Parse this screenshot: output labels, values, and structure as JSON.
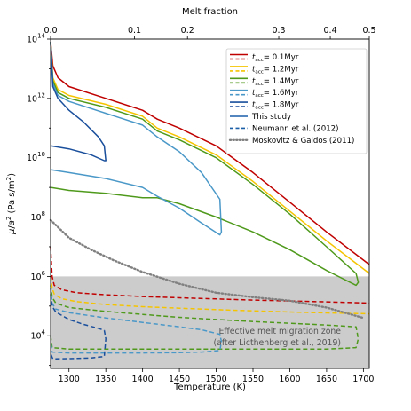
{
  "chart_data": {
    "type": "line",
    "xlabel": "Temperature (K)",
    "ylabel": "μ/a² (Pa s/m²)",
    "top_xlabel": "Melt fraction",
    "xlim": [
      1275,
      1708
    ],
    "ylim_log10": [
      2.9,
      14
    ],
    "y_scale": "log",
    "x_ticks": [
      1300,
      1350,
      1400,
      1450,
      1500,
      1550,
      1600,
      1650,
      1700
    ],
    "y_tick_exponents": [
      4,
      6,
      8,
      10,
      12,
      14
    ],
    "top_ticks": [
      {
        "label": "0.0",
        "T": 1275
      },
      {
        "label": "0.1",
        "T": 1389
      },
      {
        "label": "0.2",
        "T": 1461
      },
      {
        "label": "0.3",
        "T": 1585
      },
      {
        "label": "0.4",
        "T": 1655
      },
      {
        "label": "0.5",
        "T": 1708
      }
    ],
    "shaded_zone": {
      "label_lines": [
        "Effective melt migration zone",
        "(after Licthenberg et al., 2019)"
      ],
      "y_log10_range": [
        2.9,
        6
      ],
      "color": "#cccccc"
    },
    "legend": [
      {
        "text": "t",
        "sub": "acc",
        "value": "= 0.1Myr",
        "color": "#c00000",
        "style": "solid+dashed"
      },
      {
        "text": "t",
        "sub": "acc",
        "value": "= 1.2Myr",
        "color": "#f5c400",
        "style": "solid+dashed"
      },
      {
        "text": "t",
        "sub": "acc",
        "value": "= 1.4Myr",
        "color": "#4f9a1c",
        "style": "solid+dashed"
      },
      {
        "text": "t",
        "sub": "acc",
        "value": "= 1.6Myr",
        "color": "#4a98c8",
        "style": "solid+dashed"
      },
      {
        "text": "t",
        "sub": "acc",
        "value": "= 1.8Myr",
        "color": "#1a4f9c",
        "style": "solid+dashed"
      },
      {
        "text": "This study",
        "color": "#1a5ea8",
        "style": "solid"
      },
      {
        "text": "Neumann et al. (2012)",
        "color": "#1a5ea8",
        "style": "dashed"
      },
      {
        "text": "Moskovitz & Gaidos (2011)",
        "color": "#808080",
        "style": "dotted"
      }
    ],
    "series": [
      {
        "color": "#c00000",
        "style": "solid",
        "x": [
          1275,
          1278,
          1285,
          1300,
          1350,
          1400,
          1420,
          1450,
          1500,
          1550,
          1600,
          1650,
          1708
        ],
        "y_log10": [
          13.9,
          13.1,
          12.7,
          12.4,
          12.0,
          11.6,
          11.3,
          11.0,
          10.4,
          9.5,
          8.5,
          7.5,
          6.4
        ]
      },
      {
        "color": "#c00000",
        "style": "dashed",
        "x": [
          1275,
          1277,
          1280,
          1290,
          1310,
          1350,
          1400,
          1450,
          1500,
          1550,
          1600,
          1650,
          1708
        ],
        "y_log10": [
          7.0,
          6.0,
          5.7,
          5.55,
          5.45,
          5.38,
          5.32,
          5.28,
          5.24,
          5.2,
          5.17,
          5.14,
          5.1
        ]
      },
      {
        "color": "#f5c400",
        "style": "solid",
        "x": [
          1275,
          1278,
          1285,
          1300,
          1350,
          1400,
          1420,
          1450,
          1500,
          1550,
          1600,
          1650,
          1708
        ],
        "y_log10": [
          13.9,
          12.7,
          12.3,
          12.1,
          11.8,
          11.4,
          11.0,
          10.7,
          10.1,
          9.2,
          8.2,
          7.2,
          6.1
        ]
      },
      {
        "color": "#f5c400",
        "style": "dashed",
        "x": [
          1275,
          1277,
          1280,
          1290,
          1310,
          1350,
          1400,
          1450,
          1500,
          1550,
          1600,
          1650,
          1708
        ],
        "y_log10": [
          6.0,
          5.6,
          5.4,
          5.25,
          5.15,
          5.05,
          4.98,
          4.93,
          4.88,
          4.84,
          4.8,
          4.77,
          4.74
        ]
      },
      {
        "color": "#4f9a1c",
        "style": "solid",
        "x": [
          1275,
          1278,
          1285,
          1300,
          1350,
          1400,
          1420,
          1450,
          1500,
          1550,
          1600,
          1650,
          1690,
          1693,
          1690,
          1650,
          1600,
          1550,
          1500,
          1450,
          1420,
          1400,
          1350,
          1300,
          1275
        ],
        "y_log10": [
          13.9,
          12.6,
          12.2,
          12.0,
          11.7,
          11.3,
          10.9,
          10.6,
          10.0,
          9.1,
          8.1,
          7.0,
          6.1,
          5.8,
          5.7,
          6.2,
          6.9,
          7.5,
          8.0,
          8.45,
          8.65,
          8.65,
          8.8,
          8.9,
          9.0
        ]
      },
      {
        "color": "#4f9a1c",
        "style": "dashed",
        "x": [
          1275,
          1277,
          1282,
          1300,
          1350,
          1400,
          1450,
          1500,
          1550,
          1600,
          1650,
          1690,
          1693,
          1690,
          1650,
          1600,
          1550,
          1500,
          1400,
          1300,
          1277,
          1275
        ],
        "y_log10": [
          5.7,
          5.3,
          5.1,
          4.95,
          4.82,
          4.72,
          4.62,
          4.55,
          4.48,
          4.42,
          4.36,
          4.3,
          3.9,
          3.6,
          3.55,
          3.55,
          3.55,
          3.55,
          3.55,
          3.55,
          3.6,
          4.0
        ]
      },
      {
        "color": "#4a98c8",
        "style": "solid",
        "x": [
          1275,
          1278,
          1285,
          1300,
          1350,
          1400,
          1420,
          1450,
          1480,
          1505,
          1507,
          1505,
          1480,
          1450,
          1420,
          1400,
          1350,
          1300,
          1275
        ],
        "y_log10": [
          13.9,
          12.5,
          12.1,
          11.9,
          11.5,
          11.1,
          10.7,
          10.2,
          9.5,
          8.6,
          7.5,
          7.4,
          7.8,
          8.3,
          8.7,
          9.0,
          9.3,
          9.5,
          9.6
        ]
      },
      {
        "color": "#4a98c8",
        "style": "dashed",
        "x": [
          1275,
          1277,
          1282,
          1300,
          1350,
          1400,
          1450,
          1480,
          1505,
          1507,
          1505,
          1480,
          1450,
          1400,
          1350,
          1300,
          1277,
          1275
        ],
        "y_log10": [
          5.6,
          5.1,
          4.9,
          4.78,
          4.6,
          4.45,
          4.3,
          4.2,
          4.05,
          3.8,
          3.5,
          3.45,
          3.43,
          3.42,
          3.42,
          3.42,
          3.45,
          3.8
        ]
      },
      {
        "color": "#1a4f9c",
        "style": "solid",
        "x": [
          1275,
          1278,
          1285,
          1300,
          1320,
          1340,
          1348,
          1350,
          1348,
          1330,
          1300,
          1275
        ],
        "y_log10": [
          13.9,
          12.4,
          12.0,
          11.6,
          11.2,
          10.7,
          10.4,
          9.9,
          9.9,
          10.1,
          10.3,
          10.4
        ]
      },
      {
        "color": "#1a4f9c",
        "style": "dashed",
        "x": [
          1275,
          1277,
          1282,
          1300,
          1320,
          1340,
          1348,
          1350,
          1348,
          1330,
          1300,
          1278,
          1275
        ],
        "y_log10": [
          5.4,
          5.0,
          4.8,
          4.55,
          4.38,
          4.25,
          4.18,
          3.9,
          3.3,
          3.25,
          3.23,
          3.22,
          3.4
        ]
      },
      {
        "color": "#808080",
        "style": "dotted",
        "x": [
          1275,
          1300,
          1330,
          1360,
          1400,
          1450,
          1500,
          1550,
          1600,
          1650,
          1700
        ],
        "y_log10": [
          7.9,
          7.3,
          6.9,
          6.55,
          6.15,
          5.75,
          5.45,
          5.3,
          5.18,
          4.95,
          4.6
        ]
      }
    ]
  }
}
